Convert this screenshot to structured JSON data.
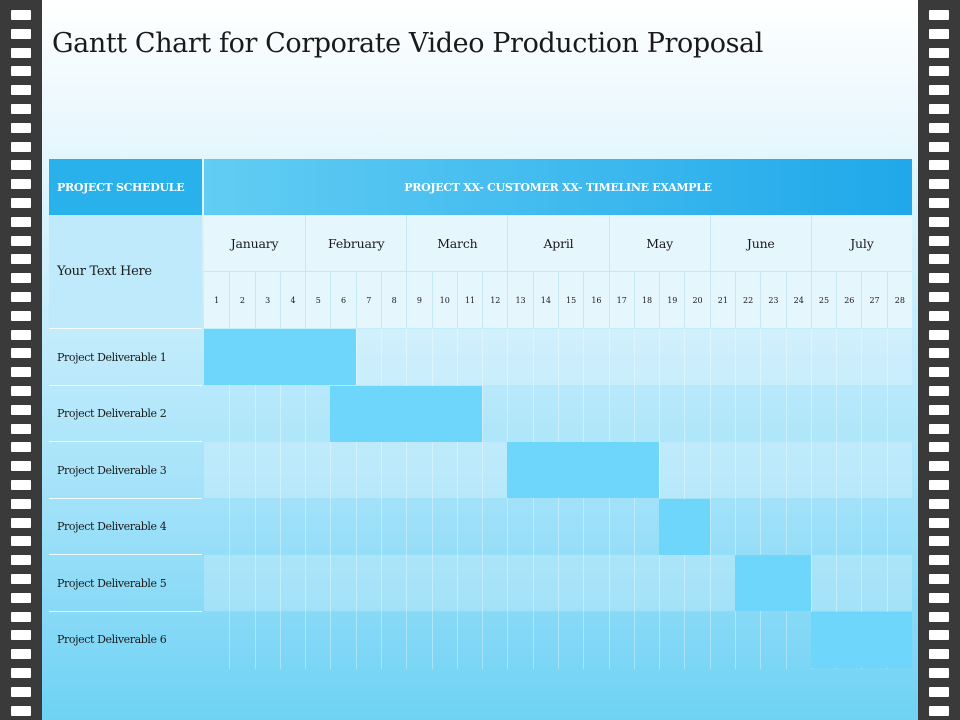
{
  "title": "Gantt Chart for Corporate Video Production Proposal",
  "header": {
    "left": "PROJECT SCHEDULE",
    "right": "PROJECT XX- CUSTOMER XX- TIMELINE EXAMPLE",
    "sub_left": "Your Text Here"
  },
  "chart_data": {
    "type": "gantt",
    "months": [
      "January",
      "February",
      "March",
      "April",
      "May",
      "June",
      "July"
    ],
    "weeks": [
      1,
      2,
      3,
      4,
      5,
      6,
      7,
      8,
      9,
      10,
      11,
      12,
      13,
      14,
      15,
      16,
      17,
      18,
      19,
      20,
      21,
      22,
      23,
      24,
      25,
      26,
      27,
      28
    ],
    "tasks": [
      {
        "name": "Project Deliverable 1",
        "start_week": 1,
        "end_week": 6
      },
      {
        "name": "Project Deliverable 2",
        "start_week": 6,
        "end_week": 11
      },
      {
        "name": "Project Deliverable 3",
        "start_week": 13,
        "end_week": 18
      },
      {
        "name": "Project Deliverable 4",
        "start_week": 19,
        "end_week": 20
      },
      {
        "name": "Project Deliverable 5",
        "start_week": 22,
        "end_week": 24
      },
      {
        "name": "Project Deliverable 6",
        "start_week": 25,
        "end_week": 28
      }
    ]
  },
  "colors": {
    "header_left": "#29b1ec",
    "header_right": "#1fa8ea",
    "bar": "#6fd6fb",
    "film": "#3a3a3a"
  }
}
